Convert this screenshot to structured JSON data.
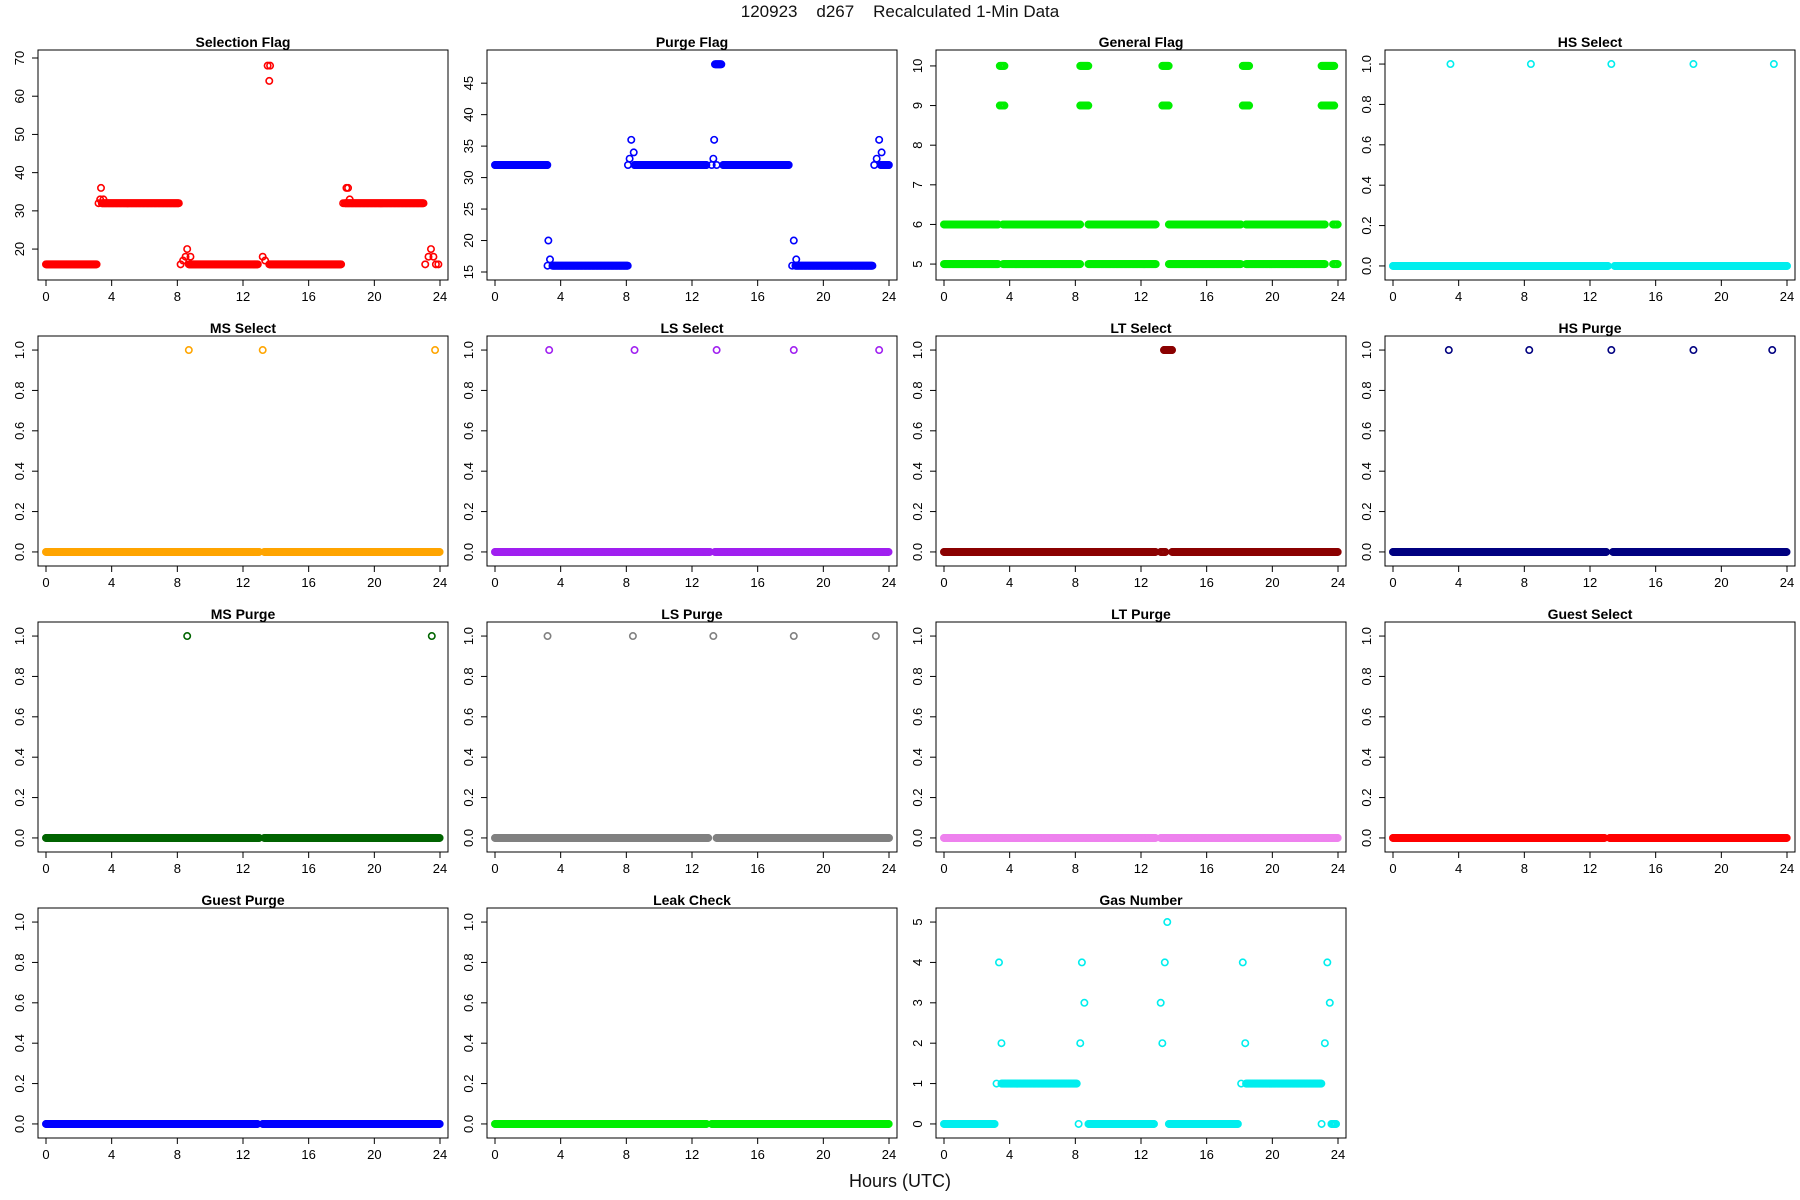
{
  "figure": {
    "title": "120923    d267    Recalculated 1-Min Data",
    "xlabel": "Hours (UTC)"
  },
  "chart_data": [
    {
      "type": "scatter",
      "title": "Selection Flag",
      "color": "#ff0000",
      "xlim": [
        0,
        24
      ],
      "ylim": [
        14,
        70
      ],
      "xticks": [
        0,
        4,
        8,
        12,
        16,
        20,
        24
      ],
      "yticks": [
        20,
        30,
        40,
        50,
        60,
        70
      ],
      "segments": [
        {
          "x": [
            0.0,
            3.1
          ],
          "y": 16
        },
        {
          "x": [
            3.4,
            8.1
          ],
          "y": 32
        },
        {
          "x": [
            8.7,
            12.9
          ],
          "y": 16
        },
        {
          "x": [
            13.6,
            18.0
          ],
          "y": 16
        },
        {
          "x": [
            18.2,
            23.0
          ],
          "y": 32
        }
      ],
      "points": [
        [
          3.2,
          32
        ],
        [
          3.3,
          33
        ],
        [
          3.35,
          36
        ],
        [
          3.5,
          33
        ],
        [
          8.2,
          16
        ],
        [
          8.35,
          17
        ],
        [
          8.5,
          18
        ],
        [
          8.6,
          20
        ],
        [
          8.8,
          18
        ],
        [
          13.2,
          18
        ],
        [
          13.35,
          17
        ],
        [
          13.5,
          68
        ],
        [
          13.65,
          68
        ],
        [
          13.6,
          64
        ],
        [
          18.1,
          32
        ],
        [
          18.3,
          36
        ],
        [
          18.4,
          36
        ],
        [
          18.5,
          33
        ],
        [
          23.1,
          16
        ],
        [
          23.3,
          18
        ],
        [
          23.45,
          20
        ],
        [
          23.6,
          18
        ],
        [
          23.75,
          16
        ],
        [
          23.9,
          16
        ]
      ]
    },
    {
      "type": "scatter",
      "title": "Purge Flag",
      "color": "#0000ff",
      "xlim": [
        0,
        24
      ],
      "ylim": [
        15,
        49
      ],
      "xticks": [
        0,
        4,
        8,
        12,
        16,
        20,
        24
      ],
      "yticks": [
        15,
        20,
        25,
        30,
        35,
        40,
        45
      ],
      "segments": [
        {
          "x": [
            0.0,
            3.2
          ],
          "y": 32
        },
        {
          "x": [
            3.5,
            8.1
          ],
          "y": 16
        },
        {
          "x": [
            8.5,
            12.9
          ],
          "y": 32
        },
        {
          "x": [
            13.4,
            13.8
          ],
          "y": 48
        },
        {
          "x": [
            13.9,
            17.9
          ],
          "y": 32
        },
        {
          "x": [
            18.3,
            23.0
          ],
          "y": 16
        },
        {
          "x": [
            23.5,
            24.0
          ],
          "y": 32
        }
      ],
      "points": [
        [
          3.2,
          16
        ],
        [
          3.25,
          20
        ],
        [
          3.35,
          17
        ],
        [
          8.1,
          32
        ],
        [
          8.2,
          33
        ],
        [
          8.3,
          36
        ],
        [
          8.45,
          34
        ],
        [
          13.2,
          32
        ],
        [
          13.3,
          33
        ],
        [
          13.35,
          36
        ],
        [
          13.5,
          32
        ],
        [
          18.1,
          16
        ],
        [
          18.2,
          20
        ],
        [
          18.35,
          17
        ],
        [
          23.1,
          32
        ],
        [
          23.25,
          33
        ],
        [
          23.4,
          36
        ],
        [
          23.55,
          34
        ]
      ]
    },
    {
      "type": "scatter",
      "title": "General Flag",
      "color": "#00ee00",
      "xlim": [
        0,
        24
      ],
      "ylim": [
        4.8,
        10.2
      ],
      "xticks": [
        0,
        4,
        8,
        12,
        16,
        20,
        24
      ],
      "yticks": [
        5,
        6,
        7,
        8,
        9,
        10
      ],
      "segments": [
        {
          "x": [
            0.0,
            3.3
          ],
          "y": 6
        },
        {
          "x": [
            3.6,
            8.3
          ],
          "y": 6
        },
        {
          "x": [
            8.8,
            12.9
          ],
          "y": 6
        },
        {
          "x": [
            13.7,
            18.1
          ],
          "y": 6
        },
        {
          "x": [
            18.4,
            23.2
          ],
          "y": 6
        },
        {
          "x": [
            23.7,
            24.0
          ],
          "y": 6
        },
        {
          "x": [
            0.0,
            3.3
          ],
          "y": 5
        },
        {
          "x": [
            3.6,
            8.3
          ],
          "y": 5
        },
        {
          "x": [
            8.8,
            12.9
          ],
          "y": 5
        },
        {
          "x": [
            13.7,
            18.1
          ],
          "y": 5
        },
        {
          "x": [
            18.4,
            23.2
          ],
          "y": 5
        },
        {
          "x": [
            23.7,
            24.0
          ],
          "y": 5
        },
        {
          "x": [
            3.4,
            3.7
          ],
          "y": 10
        },
        {
          "x": [
            8.3,
            8.8
          ],
          "y": 10
        },
        {
          "x": [
            13.3,
            13.7
          ],
          "y": 10
        },
        {
          "x": [
            18.2,
            18.6
          ],
          "y": 10
        },
        {
          "x": [
            23.0,
            23.8
          ],
          "y": 10
        },
        {
          "x": [
            3.4,
            3.7
          ],
          "y": 9
        },
        {
          "x": [
            8.3,
            8.8
          ],
          "y": 9
        },
        {
          "x": [
            13.3,
            13.7
          ],
          "y": 9
        },
        {
          "x": [
            18.2,
            18.6
          ],
          "y": 9
        },
        {
          "x": [
            23.0,
            23.8
          ],
          "y": 9
        }
      ],
      "points": []
    },
    {
      "type": "scatter",
      "title": "HS Select",
      "color": "#00eeee",
      "xlim": [
        0,
        24
      ],
      "ylim": [
        -0.03,
        1.03
      ],
      "xticks": [
        0,
        4,
        8,
        12,
        16,
        20,
        24
      ],
      "yticks": [
        0.0,
        0.2,
        0.4,
        0.6,
        0.8,
        1.0
      ],
      "segments": [
        {
          "x": [
            0.0,
            13.1
          ],
          "y": 0
        },
        {
          "x": [
            13.5,
            24.0
          ],
          "y": 0
        }
      ],
      "points": [
        [
          3.5,
          1
        ],
        [
          8.4,
          1
        ],
        [
          13.3,
          1
        ],
        [
          18.3,
          1
        ],
        [
          23.2,
          1
        ]
      ]
    },
    {
      "type": "scatter",
      "title": "MS Select",
      "color": "#ffa500",
      "xlim": [
        0,
        24
      ],
      "ylim": [
        -0.03,
        1.03
      ],
      "xticks": [
        0,
        4,
        8,
        12,
        16,
        20,
        24
      ],
      "yticks": [
        0.0,
        0.2,
        0.4,
        0.6,
        0.8,
        1.0
      ],
      "segments": [
        {
          "x": [
            0.0,
            13.0
          ],
          "y": 0
        },
        {
          "x": [
            13.3,
            24.0
          ],
          "y": 0
        }
      ],
      "points": [
        [
          8.7,
          1
        ],
        [
          13.2,
          1
        ],
        [
          23.7,
          1
        ]
      ]
    },
    {
      "type": "scatter",
      "title": "LS Select",
      "color": "#a020f0",
      "xlim": [
        0,
        24
      ],
      "ylim": [
        -0.03,
        1.03
      ],
      "xticks": [
        0,
        4,
        8,
        12,
        16,
        20,
        24
      ],
      "yticks": [
        0.0,
        0.2,
        0.4,
        0.6,
        0.8,
        1.0
      ],
      "segments": [
        {
          "x": [
            0.0,
            13.1
          ],
          "y": 0
        },
        {
          "x": [
            13.4,
            24.0
          ],
          "y": 0
        }
      ],
      "points": [
        [
          3.3,
          1
        ],
        [
          8.5,
          1
        ],
        [
          13.5,
          1
        ],
        [
          18.2,
          1
        ],
        [
          23.4,
          1
        ]
      ]
    },
    {
      "type": "scatter",
      "title": "LT Select",
      "color": "#8b0000",
      "xlim": [
        0,
        24
      ],
      "ylim": [
        -0.03,
        1.03
      ],
      "xticks": [
        0,
        4,
        8,
        12,
        16,
        20,
        24
      ],
      "yticks": [
        0.0,
        0.2,
        0.4,
        0.6,
        0.8,
        1.0
      ],
      "segments": [
        {
          "x": [
            0.0,
            12.9
          ],
          "y": 0
        },
        {
          "x": [
            13.2,
            13.5
          ],
          "y": 0
        },
        {
          "x": [
            13.9,
            24.0
          ],
          "y": 0
        },
        {
          "x": [
            13.4,
            13.9
          ],
          "y": 1
        }
      ],
      "points": []
    },
    {
      "type": "scatter",
      "title": "HS Purge",
      "color": "#000080",
      "xlim": [
        0,
        24
      ],
      "ylim": [
        -0.03,
        1.03
      ],
      "xticks": [
        0,
        4,
        8,
        12,
        16,
        20,
        24
      ],
      "yticks": [
        0.0,
        0.2,
        0.4,
        0.6,
        0.8,
        1.0
      ],
      "segments": [
        {
          "x": [
            0.0,
            13.0
          ],
          "y": 0
        },
        {
          "x": [
            13.4,
            24.0
          ],
          "y": 0
        }
      ],
      "points": [
        [
          3.4,
          1
        ],
        [
          8.3,
          1
        ],
        [
          13.3,
          1
        ],
        [
          18.3,
          1
        ],
        [
          23.1,
          1
        ]
      ]
    },
    {
      "type": "scatter",
      "title": "MS Purge",
      "color": "#006400",
      "xlim": [
        0,
        24
      ],
      "ylim": [
        -0.03,
        1.03
      ],
      "xticks": [
        0,
        4,
        8,
        12,
        16,
        20,
        24
      ],
      "yticks": [
        0.0,
        0.2,
        0.4,
        0.6,
        0.8,
        1.0
      ],
      "segments": [
        {
          "x": [
            0.0,
            13.0
          ],
          "y": 0
        },
        {
          "x": [
            13.3,
            24.0
          ],
          "y": 0
        }
      ],
      "points": [
        [
          8.6,
          1
        ],
        [
          23.5,
          1
        ]
      ]
    },
    {
      "type": "scatter",
      "title": "LS Purge",
      "color": "#808080",
      "xlim": [
        0,
        24
      ],
      "ylim": [
        -0.03,
        1.03
      ],
      "xticks": [
        0,
        4,
        8,
        12,
        16,
        20,
        24
      ],
      "yticks": [
        0.0,
        0.2,
        0.4,
        0.6,
        0.8,
        1.0
      ],
      "segments": [
        {
          "x": [
            0.0,
            13.0
          ],
          "y": 0
        },
        {
          "x": [
            13.5,
            24.0
          ],
          "y": 0
        }
      ],
      "points": [
        [
          3.2,
          1
        ],
        [
          8.4,
          1
        ],
        [
          13.3,
          1
        ],
        [
          18.2,
          1
        ],
        [
          23.2,
          1
        ]
      ]
    },
    {
      "type": "scatter",
      "title": "LT Purge",
      "color": "#ee82ee",
      "xlim": [
        0,
        24
      ],
      "ylim": [
        -0.03,
        1.03
      ],
      "xticks": [
        0,
        4,
        8,
        12,
        16,
        20,
        24
      ],
      "yticks": [
        0.0,
        0.2,
        0.4,
        0.6,
        0.8,
        1.0
      ],
      "segments": [
        {
          "x": [
            0.0,
            12.9
          ],
          "y": 0
        },
        {
          "x": [
            13.2,
            24.0
          ],
          "y": 0
        }
      ],
      "points": []
    },
    {
      "type": "scatter",
      "title": "Guest Select",
      "color": "#ff0000",
      "xlim": [
        0,
        24
      ],
      "ylim": [
        -0.03,
        1.03
      ],
      "xticks": [
        0,
        4,
        8,
        12,
        16,
        20,
        24
      ],
      "yticks": [
        0.0,
        0.2,
        0.4,
        0.6,
        0.8,
        1.0
      ],
      "segments": [
        {
          "x": [
            0.0,
            12.9
          ],
          "y": 0
        },
        {
          "x": [
            13.2,
            24.0
          ],
          "y": 0
        }
      ],
      "points": []
    },
    {
      "type": "scatter",
      "title": "Guest Purge",
      "color": "#0000ff",
      "xlim": [
        0,
        24
      ],
      "ylim": [
        -0.03,
        1.03
      ],
      "xticks": [
        0,
        4,
        8,
        12,
        16,
        20,
        24
      ],
      "yticks": [
        0.0,
        0.2,
        0.4,
        0.6,
        0.8,
        1.0
      ],
      "segments": [
        {
          "x": [
            0.0,
            12.9
          ],
          "y": 0
        },
        {
          "x": [
            13.2,
            24.0
          ],
          "y": 0
        }
      ],
      "points": []
    },
    {
      "type": "scatter",
      "title": "Leak Check",
      "color": "#00ee00",
      "xlim": [
        0,
        24
      ],
      "ylim": [
        -0.03,
        1.03
      ],
      "xticks": [
        0,
        4,
        8,
        12,
        16,
        20,
        24
      ],
      "yticks": [
        0.0,
        0.2,
        0.4,
        0.6,
        0.8,
        1.0
      ],
      "segments": [
        {
          "x": [
            0.0,
            12.9
          ],
          "y": 0
        },
        {
          "x": [
            13.2,
            24.0
          ],
          "y": 0
        }
      ],
      "points": []
    },
    {
      "type": "scatter",
      "title": "Gas Number",
      "color": "#00eeee",
      "xlim": [
        0,
        24
      ],
      "ylim": [
        -0.15,
        5.15
      ],
      "xticks": [
        0,
        4,
        8,
        12,
        16,
        20,
        24
      ],
      "yticks": [
        0,
        1,
        2,
        3,
        4,
        5
      ],
      "segments": [
        {
          "x": [
            0.0,
            3.1
          ],
          "y": 0
        },
        {
          "x": [
            3.5,
            8.1
          ],
          "y": 1
        },
        {
          "x": [
            8.8,
            12.8
          ],
          "y": 0
        },
        {
          "x": [
            13.7,
            17.9
          ],
          "y": 0
        },
        {
          "x": [
            18.4,
            23.0
          ],
          "y": 1
        },
        {
          "x": [
            23.6,
            23.9
          ],
          "y": 0
        }
      ],
      "points": [
        [
          3.2,
          1
        ],
        [
          3.35,
          4
        ],
        [
          3.5,
          2
        ],
        [
          8.2,
          0
        ],
        [
          8.3,
          2
        ],
        [
          8.4,
          4
        ],
        [
          8.55,
          3
        ],
        [
          13.2,
          3
        ],
        [
          13.3,
          2
        ],
        [
          13.45,
          4
        ],
        [
          13.6,
          5
        ],
        [
          18.1,
          1
        ],
        [
          18.2,
          4
        ],
        [
          18.35,
          2
        ],
        [
          23.0,
          0
        ],
        [
          23.2,
          2
        ],
        [
          23.35,
          4
        ],
        [
          23.5,
          3
        ]
      ]
    }
  ]
}
